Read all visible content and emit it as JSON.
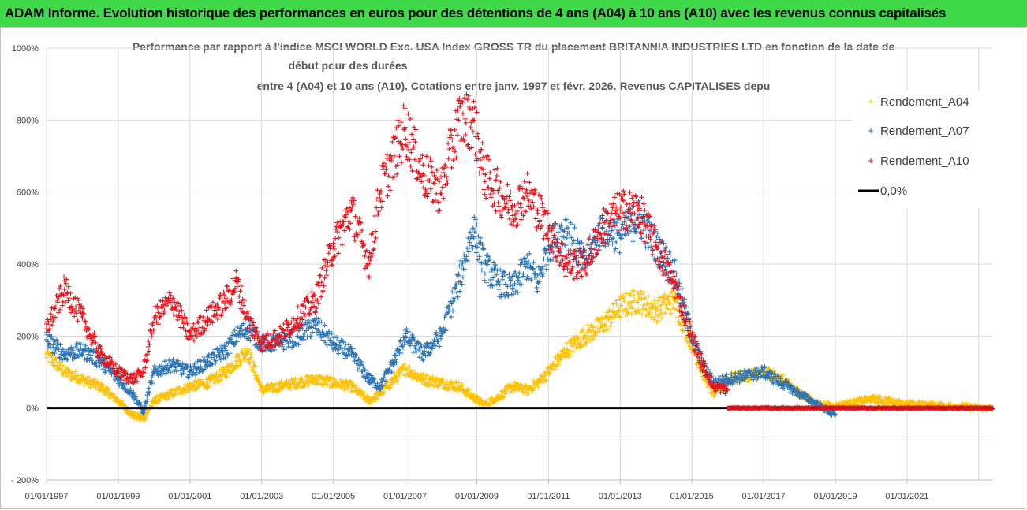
{
  "banner": {
    "title": "ADAM Informe. Evolution historique des performances en euros pour des détentions de 4 ans (A04) à 10 ans (A10) avec les revenus connus capitalisés"
  },
  "chart_data": {
    "type": "scatter",
    "title_lines": [
      "Performance par rapport à l'indice MSCI WORLD Exc. USA Index GROSS TR  du placement BRITANNIA INDUSTRIES LTD en fonction de la date de",
      "début pour des durées",
      "entre 4 (A04) et 10 ans (A10). Cotations entre janv. 1997 et févr. 2026. Revenus CAPITALISES depu"
    ],
    "x_tick_labels": [
      "01/01/1997",
      "01/01/1999",
      "01/01/2001",
      "01/01/2003",
      "01/01/2005",
      "01/01/2007",
      "01/01/2009",
      "01/01/2011",
      "01/01/2013",
      "01/01/2015",
      "01/01/2017",
      "01/01/2019",
      "01/01/2021"
    ],
    "x_range_years": [
      1997.0,
      2023.4
    ],
    "y_tick_labels": [
      "- 200%",
      "0%",
      "200%",
      "400%",
      "600%",
      "800%",
      "1000%"
    ],
    "y_range": [
      -200,
      1000
    ],
    "legend_position": "right",
    "colors": {
      "Rendement_A04": "#ffc000",
      "Rendement_A07": "#2e75b6",
      "Rendement_A10": "#e8141c",
      "zero": "#000000"
    },
    "series": [
      {
        "name": "Rendement_A04",
        "marker": "+",
        "x": [
          1997.0,
          1997.5,
          1998.0,
          1998.5,
          1999.0,
          1999.4,
          1999.7,
          2000.0,
          2000.5,
          2001.0,
          2001.5,
          2002.0,
          2002.3,
          2002.6,
          2003.0,
          2003.5,
          2004.0,
          2004.5,
          2005.0,
          2005.5,
          2006.0,
          2006.3,
          2006.7,
          2007.0,
          2007.5,
          2008.0,
          2008.5,
          2008.9,
          2009.2,
          2009.6,
          2010.0,
          2010.4,
          2010.7,
          2011.0,
          2011.5,
          2012.0,
          2012.5,
          2013.0,
          2013.5,
          2014.0,
          2014.5,
          2015.0,
          2015.3,
          2015.6,
          2016.0,
          2016.5,
          2017.0,
          2017.5,
          2018.0,
          2018.5,
          2019.0,
          2019.5,
          2020.0,
          2020.5,
          2021.0,
          2021.5,
          2022.0,
          2022.5,
          2023.0,
          2023.4
        ],
        "y": [
          150,
          100,
          80,
          60,
          20,
          -20,
          -30,
          20,
          40,
          60,
          70,
          100,
          130,
          160,
          50,
          60,
          70,
          80,
          70,
          60,
          20,
          40,
          80,
          110,
          80,
          70,
          60,
          30,
          10,
          30,
          60,
          50,
          70,
          100,
          160,
          200,
          230,
          280,
          300,
          270,
          300,
          180,
          100,
          40,
          80,
          90,
          100,
          80,
          40,
          10,
          5,
          15,
          25,
          20,
          10,
          10,
          5,
          5,
          0,
          0
        ]
      },
      {
        "name": "Rendement_A07",
        "marker": "+",
        "x": [
          1997.0,
          1997.5,
          1998.0,
          1998.5,
          1999.0,
          1999.4,
          1999.7,
          2000.0,
          2000.5,
          2001.0,
          2001.5,
          2002.0,
          2002.3,
          2002.6,
          2003.0,
          2003.5,
          2004.0,
          2004.5,
          2005.0,
          2005.5,
          2006.0,
          2006.3,
          2006.7,
          2007.0,
          2007.5,
          2008.0,
          2008.5,
          2008.9,
          2009.2,
          2009.6,
          2010.0,
          2010.4,
          2010.7,
          2011.0,
          2011.5,
          2012.0,
          2012.5,
          2013.0,
          2013.5,
          2014.0,
          2014.5,
          2015.0,
          2015.3,
          2015.6,
          2016.0,
          2016.5,
          2017.0,
          2017.5,
          2018.0,
          2018.5,
          2019.0
        ],
        "y": [
          190,
          150,
          160,
          130,
          80,
          40,
          -10,
          100,
          120,
          100,
          130,
          160,
          200,
          220,
          180,
          180,
          200,
          230,
          180,
          150,
          80,
          60,
          130,
          200,
          150,
          200,
          350,
          500,
          400,
          350,
          330,
          400,
          350,
          450,
          500,
          400,
          500,
          480,
          530,
          450,
          380,
          200,
          120,
          70,
          80,
          90,
          100,
          70,
          40,
          10,
          -20
        ]
      },
      {
        "name": "Rendement_A10",
        "marker": "+",
        "x": [
          1997.0,
          1997.5,
          1998.0,
          1998.5,
          1999.0,
          1999.4,
          1999.7,
          2000.0,
          2000.5,
          2001.0,
          2001.5,
          2002.0,
          2002.3,
          2002.6,
          2003.0,
          2003.5,
          2004.0,
          2004.5,
          2005.0,
          2005.5,
          2006.0,
          2006.3,
          2006.7,
          2007.0,
          2007.5,
          2008.0,
          2008.5,
          2008.9,
          2009.2,
          2009.6,
          2010.0,
          2010.4,
          2010.7,
          2011.0,
          2011.5,
          2012.0,
          2012.5,
          2013.0,
          2013.5,
          2014.0,
          2014.5,
          2015.0,
          2015.3,
          2015.6,
          2016.0
        ],
        "y": [
          220,
          330,
          250,
          150,
          100,
          80,
          100,
          250,
          300,
          200,
          250,
          300,
          350,
          250,
          180,
          200,
          250,
          300,
          450,
          550,
          400,
          600,
          700,
          780,
          650,
          600,
          800,
          800,
          650,
          600,
          550,
          600,
          550,
          500,
          400,
          400,
          500,
          550,
          550,
          450,
          350,
          200,
          120,
          60,
          50
        ]
      }
    ],
    "zero_line": {
      "label": "0,0%",
      "y": 0
    },
    "tail_flat": {
      "series": "Rendement_A10",
      "x_start": 2016.0,
      "x_end": 2023.4,
      "y": 0
    }
  }
}
